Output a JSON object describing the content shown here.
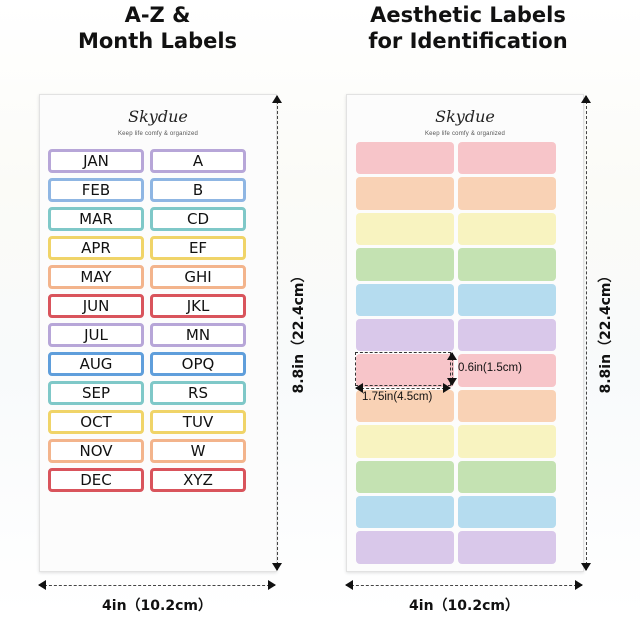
{
  "left_panel": {
    "heading": [
      "A-Z &",
      "Month Labels"
    ],
    "brand": "Skydue",
    "tagline": "Keep life comfy & organized",
    "rows": [
      {
        "month": "JAN",
        "letters": "A",
        "color": "#b7a6d8"
      },
      {
        "month": "FEB",
        "letters": "B",
        "color": "#8fb6e3"
      },
      {
        "month": "MAR",
        "letters": "CD",
        "color": "#7fc8c8"
      },
      {
        "month": "APR",
        "letters": "EF",
        "color": "#f0d468"
      },
      {
        "month": "MAY",
        "letters": "GHI",
        "color": "#f3b48c"
      },
      {
        "month": "JUN",
        "letters": "JKL",
        "color": "#d9545c"
      },
      {
        "month": "JUL",
        "letters": "MN",
        "color": "#b7a6d8"
      },
      {
        "month": "AUG",
        "letters": "OPQ",
        "color": "#5f9edb"
      },
      {
        "month": "SEP",
        "letters": "RS",
        "color": "#7fc8c8"
      },
      {
        "month": "OCT",
        "letters": "TUV",
        "color": "#f0d468"
      },
      {
        "month": "NOV",
        "letters": "W",
        "color": "#f3b48c"
      },
      {
        "month": "DEC",
        "letters": "XYZ",
        "color": "#d9545c"
      }
    ],
    "height_label": "8.8in（22.4cm）",
    "width_label": "4in（10.2cm）"
  },
  "right_panel": {
    "heading": [
      "Aesthetic Labels",
      "for Identification"
    ],
    "brand": "Skydue",
    "tagline": "Keep life comfy & organized",
    "swatch_colors": [
      "#f7c5c9",
      "#f9d2b5",
      "#f8f3c0",
      "#c4e2b2",
      "#b5dcef",
      "#d9c8ea",
      "#f7c5c9",
      "#f9d2b5",
      "#f8f3c0",
      "#c4e2b2",
      "#b5dcef",
      "#d9c8ea"
    ],
    "sample_height": "0.6in(1.5cm)",
    "sample_width": "1.75in(4.5cm)",
    "height_label": "8.8in（22.4cm）",
    "width_label": "4in（10.2cm）"
  }
}
